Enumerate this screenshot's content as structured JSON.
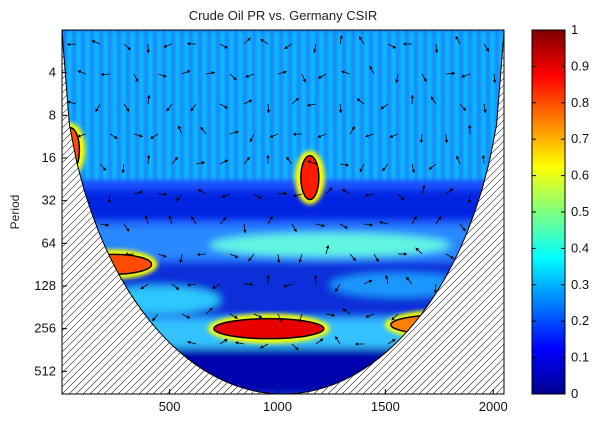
{
  "chart_data": {
    "type": "heatmap",
    "title": "Crude Oil PR vs. Germany CSIR",
    "xlabel": "",
    "ylabel": "Period",
    "x_ticks": [
      500,
      1000,
      1500,
      2000
    ],
    "xlim": [
      1,
      2050
    ],
    "y_ticks": [
      4,
      8,
      16,
      32,
      64,
      128,
      256,
      512
    ],
    "y_scale": "log2",
    "ylim": [
      2,
      740
    ],
    "colorbar": {
      "ticks": [
        0,
        0.1,
        0.2,
        0.3,
        0.4,
        0.5,
        0.6,
        0.7,
        0.8,
        0.9,
        1
      ],
      "range": [
        0,
        1
      ],
      "colormap": "jet"
    },
    "significant_regions": [
      {
        "x_center": 960,
        "period": 256,
        "coherence": 0.9
      },
      {
        "x_center": 240,
        "period": 90,
        "coherence": 0.8
      },
      {
        "x_center": 1150,
        "period": 22,
        "coherence": 0.85
      },
      {
        "x_center": 40,
        "period": 14,
        "coherence": 0.8
      },
      {
        "x_center": 1780,
        "period": 240,
        "coherence": 0.75
      }
    ],
    "colors": {
      "low": "#00008f",
      "mid": "#00ffff",
      "high": "#800000",
      "coi_hatch": "#000000"
    }
  }
}
